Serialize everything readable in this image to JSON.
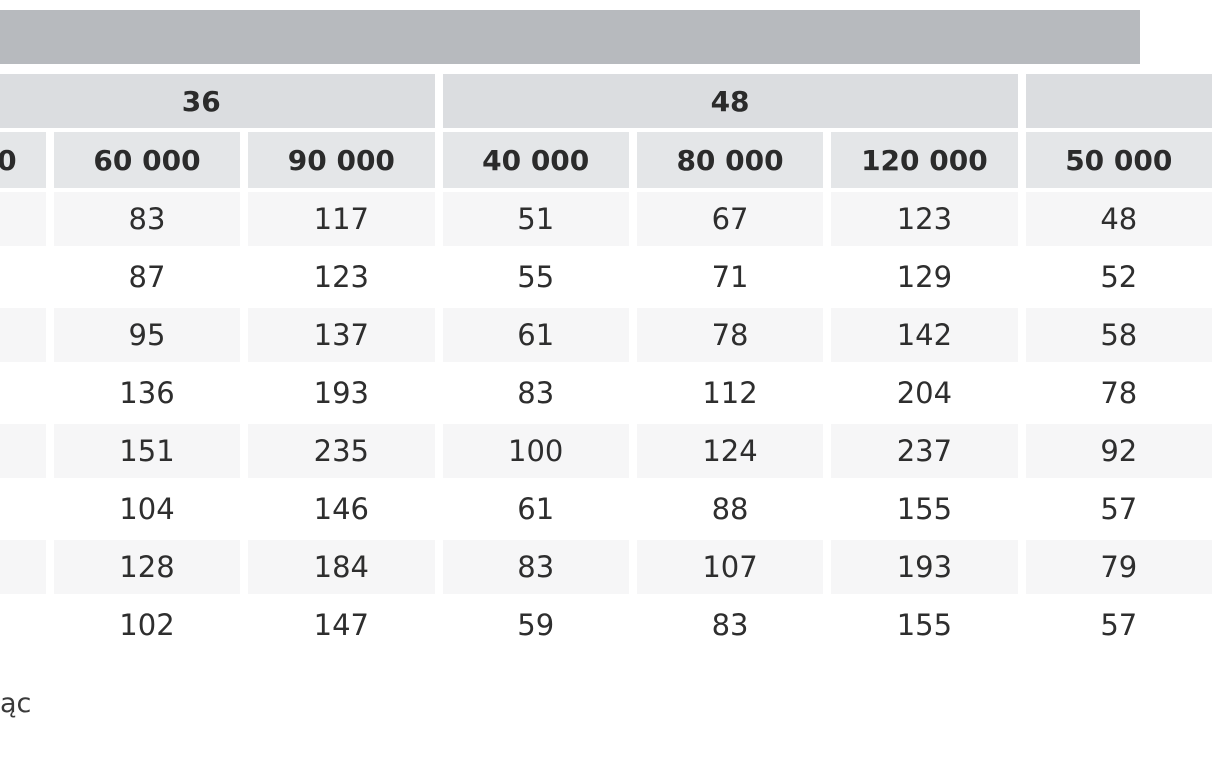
{
  "table": {
    "groups": [
      {
        "label": "36",
        "span": 3
      },
      {
        "label": "48",
        "span": 3
      },
      {
        "label": "",
        "span": 1
      }
    ],
    "distances": [
      "0",
      "60 000",
      "90 000",
      "40 000",
      "80 000",
      "120 000",
      "50 000"
    ],
    "rows": [
      [
        "",
        "83",
        "117",
        "51",
        "67",
        "123",
        "48"
      ],
      [
        "",
        "87",
        "123",
        "55",
        "71",
        "129",
        "52"
      ],
      [
        "",
        "95",
        "137",
        "61",
        "78",
        "142",
        "58"
      ],
      [
        "",
        "136",
        "193",
        "83",
        "112",
        "204",
        "78"
      ],
      [
        "",
        "151",
        "235",
        "100",
        "124",
        "237",
        "92"
      ],
      [
        "",
        "104",
        "146",
        "61",
        "88",
        "155",
        "57"
      ],
      [
        "",
        "128",
        "184",
        "83",
        "107",
        "193",
        "79"
      ],
      [
        "",
        "102",
        "147",
        "59",
        "83",
        "155",
        "57"
      ]
    ]
  },
  "footnote": "ąc"
}
